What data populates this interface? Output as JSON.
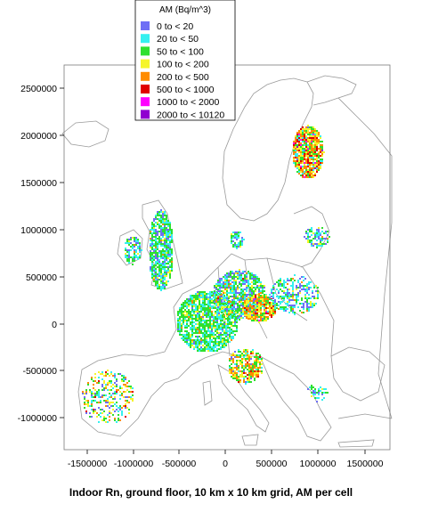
{
  "caption": "Indoor Rn, ground floor, 10 km x 10 km grid, AM per cell",
  "legend": {
    "title": "AM (Bq/m^3)",
    "items": [
      {
        "label": "0  to < 20",
        "color": "#6f6ff5"
      },
      {
        "label": "20  to < 50",
        "color": "#35f0f0"
      },
      {
        "label": "50  to < 100",
        "color": "#2fe02f"
      },
      {
        "label": "100  to < 200",
        "color": "#f5f52a"
      },
      {
        "label": "200  to < 500",
        "color": "#ff8c00"
      },
      {
        "label": "500  to < 1000",
        "color": "#e00000"
      },
      {
        "label": "1000  to < 2000",
        "color": "#ff00ff"
      },
      {
        "label": "2000  to < 10120",
        "color": "#9000d0"
      }
    ]
  },
  "axes": {
    "x_ticks": [
      "-1500000",
      "-1000000",
      "-500000",
      "0",
      "500000",
      "1000000",
      "1500000"
    ],
    "y_ticks": [
      "2500000",
      "2000000",
      "1500000",
      "1000000",
      "500000",
      "0",
      "-500000",
      "-1000000"
    ]
  },
  "colors": {
    "coastline": "#9a9a9a",
    "frame": "#7a7a7a"
  }
}
